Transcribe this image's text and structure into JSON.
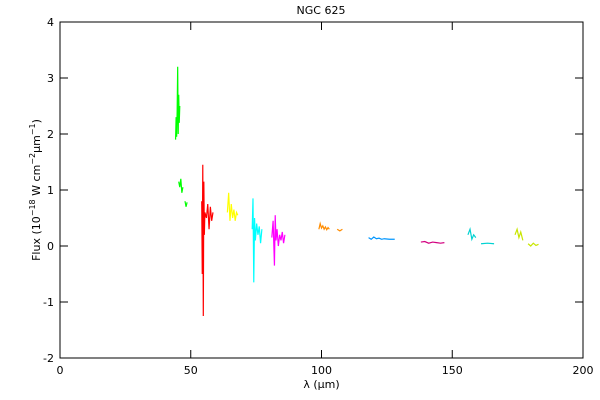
{
  "chart_data": {
    "type": "line",
    "title": "NGC 625",
    "x_label": [
      "λ (",
      "μ",
      "m)"
    ],
    "y_label": [
      "Flux (10",
      "−18",
      " W cm",
      "−2",
      "μm",
      "−1",
      ")"
    ],
    "xlim": [
      0,
      200
    ],
    "xticks": [
      0,
      50,
      100,
      150,
      200
    ],
    "ylim": [
      -2,
      4
    ],
    "yticks": [
      -2,
      -1,
      0,
      1,
      2,
      3,
      4
    ],
    "series": [
      {
        "color": "#00ff00",
        "x": [
          44.2,
          44.4,
          44.6,
          44.8,
          45.0,
          45.2,
          45.4,
          45.6,
          45.8,
          null,
          45.4,
          45.8,
          46.2,
          46.6,
          47.0,
          null,
          47.8,
          48.2,
          48.6
        ],
        "values": [
          1.9,
          2.3,
          1.95,
          2.4,
          3.2,
          2.0,
          2.7,
          2.2,
          2.5,
          null,
          1.15,
          1.05,
          1.2,
          0.95,
          1.05,
          null,
          0.8,
          0.7,
          0.78
        ]
      },
      {
        "color": "#ff0000",
        "x": [
          54.2,
          54.4,
          54.6,
          54.8,
          55.0,
          55.2,
          55.4,
          56.0,
          56.5,
          57.0,
          57.5,
          58.0,
          58.5
        ],
        "values": [
          0.8,
          -0.5,
          1.45,
          -1.25,
          1.15,
          0.2,
          0.6,
          0.5,
          0.75,
          0.3,
          0.7,
          0.45,
          0.6
        ]
      },
      {
        "color": "#ffff00",
        "x": [
          64,
          64.5,
          65,
          65.5,
          66,
          66.5,
          67,
          67.5,
          68
        ],
        "values": [
          0.6,
          0.95,
          0.45,
          0.75,
          0.5,
          0.65,
          0.45,
          0.6,
          0.55
        ]
      },
      {
        "color": "#00ffff",
        "x": [
          73.5,
          73.8,
          74.1,
          74.4,
          74.7,
          75.2,
          75.7,
          76.2,
          76.7,
          77.2
        ],
        "values": [
          0.3,
          0.85,
          -0.65,
          0.5,
          0.1,
          0.4,
          0.2,
          0.35,
          0.05,
          0.3
        ]
      },
      {
        "color": "#ff00ff",
        "x": [
          81,
          81.5,
          82,
          82.3,
          82.6,
          83,
          83.5,
          84,
          84.5,
          85,
          85.5,
          86
        ],
        "values": [
          0.15,
          0.45,
          -0.35,
          0.55,
          0.1,
          0.3,
          0.0,
          0.2,
          0.1,
          0.25,
          0.05,
          0.2
        ]
      },
      {
        "color": "#ff8c00",
        "x": [
          99,
          99.5,
          100,
          100.5,
          101,
          101.5,
          102,
          102.5,
          103,
          null,
          106,
          107,
          108
        ],
        "values": [
          0.3,
          0.4,
          0.32,
          0.36,
          0.3,
          0.34,
          0.29,
          0.33,
          0.3,
          null,
          0.3,
          0.27,
          0.3
        ]
      },
      {
        "color": "#0096ff",
        "x": [
          118,
          119,
          120,
          121,
          122,
          123,
          124,
          126,
          128
        ],
        "values": [
          0.15,
          0.12,
          0.16,
          0.13,
          0.14,
          0.12,
          0.13,
          0.12,
          0.12
        ]
      },
      {
        "color": "#d2007f",
        "x": [
          138,
          139.5,
          141,
          142.5,
          144,
          145.5,
          147
        ],
        "values": [
          0.07,
          0.08,
          0.05,
          0.07,
          0.06,
          0.05,
          0.06
        ]
      },
      {
        "color": "#00d2d2",
        "x": [
          156,
          156.8,
          157.5,
          158.2,
          159,
          null,
          161,
          163.5,
          166
        ],
        "values": [
          0.2,
          0.3,
          0.12,
          0.2,
          0.15,
          null,
          0.04,
          0.05,
          0.04
        ]
      },
      {
        "color": "#c8e600",
        "x": [
          174,
          174.8,
          175.5,
          176.2,
          177,
          null,
          179,
          180,
          181,
          182,
          183
        ],
        "values": [
          0.2,
          0.3,
          0.15,
          0.25,
          0.1,
          null,
          0.04,
          0.0,
          0.05,
          0.01,
          0.03
        ]
      }
    ]
  }
}
